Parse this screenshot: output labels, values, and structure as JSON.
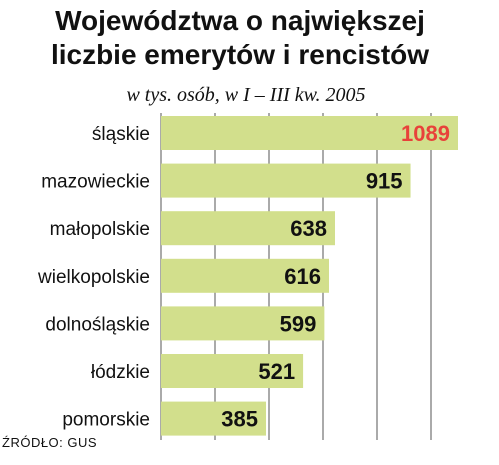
{
  "chart_data": {
    "type": "bar",
    "orientation": "horizontal",
    "title_line1": "Województwa o największej",
    "title_line2": "liczbie emerytów i rencistów",
    "subtitle": "w tys. osób, w I – III kw. 2005",
    "categories": [
      "śląskie",
      "mazowieckie",
      "małopolskie",
      "wielkopolskie",
      "dolnośląskie",
      "łódzkie",
      "pomorskie"
    ],
    "values": [
      1089,
      915,
      638,
      616,
      599,
      521,
      385
    ],
    "value_labels": [
      "1089",
      "915",
      "638",
      "616",
      "599",
      "521",
      "385"
    ],
    "xlim": [
      0,
      1180
    ],
    "grid": true,
    "source": "ŹRÓDŁO: GUS",
    "colors": {
      "bar": "#d2df8c",
      "grid": "#555555",
      "value_text": "#111111",
      "highlight_value_text": "#e8423a"
    }
  }
}
